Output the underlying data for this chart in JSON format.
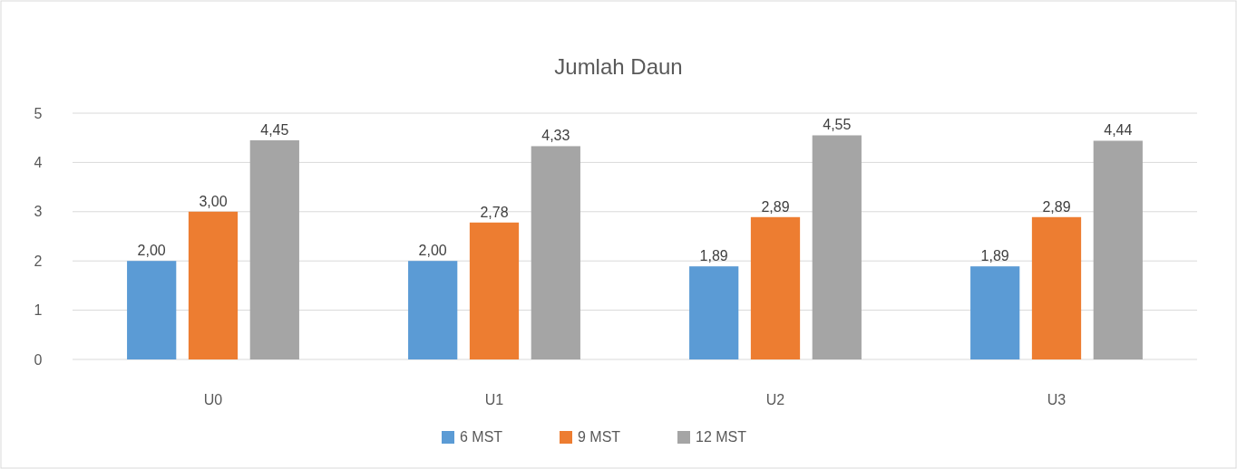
{
  "chart_data": {
    "type": "bar",
    "title": "Jumlah Daun",
    "categories": [
      "U0",
      "U1",
      "U2",
      "U3"
    ],
    "series": [
      {
        "name": "6 MST",
        "color": "#5b9bd5",
        "values": [
          2.0,
          2.0,
          1.89,
          1.89
        ],
        "value_labels": [
          "2,00",
          "2,00",
          "1,89",
          "1,89"
        ]
      },
      {
        "name": "9 MST",
        "color": "#ed7d31",
        "values": [
          3.0,
          2.78,
          2.89,
          2.89
        ],
        "value_labels": [
          "3,00",
          "2,78",
          "2,89",
          "2,89"
        ]
      },
      {
        "name": "12 MST",
        "color": "#a5a5a5",
        "values": [
          4.45,
          4.33,
          4.55,
          4.44
        ],
        "value_labels": [
          "4,45",
          "4,33",
          "4,55",
          "4,44"
        ]
      }
    ],
    "ylim": [
      0,
      5
    ],
    "yticks": [
      0,
      1,
      2,
      3,
      4,
      5
    ],
    "grid": "y",
    "legend": "bottom"
  }
}
